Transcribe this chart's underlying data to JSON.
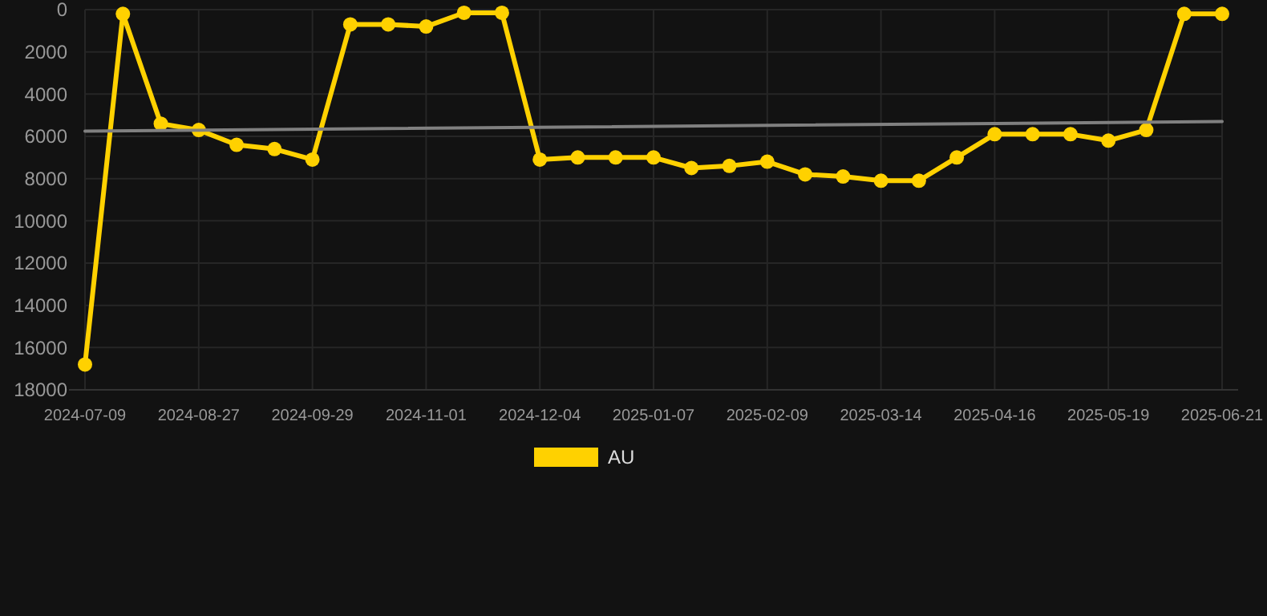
{
  "chart_data": {
    "type": "line",
    "categories": [
      "2024-07-09",
      null,
      null,
      "2024-08-27",
      null,
      null,
      "2024-09-29",
      null,
      null,
      "2024-11-01",
      null,
      null,
      "2024-12-04",
      null,
      null,
      "2025-01-07",
      null,
      null,
      "2025-02-09",
      null,
      null,
      "2025-03-14",
      null,
      null,
      "2025-04-16",
      null,
      null,
      "2025-05-19",
      null,
      null,
      "2025-06-21"
    ],
    "series": [
      {
        "name": "AU",
        "color": "#ffd100",
        "marker": "circle",
        "values": [
          16800,
          200,
          5400,
          5700,
          6400,
          6600,
          7100,
          700,
          700,
          800,
          150,
          150,
          7100,
          7000,
          7000,
          7000,
          7500,
          7400,
          7200,
          7800,
          7900,
          8100,
          8100,
          7000,
          5900,
          5900,
          5900,
          6200,
          5700,
          200,
          200
        ]
      },
      {
        "type": "line",
        "color": "#808080",
        "marker": "none",
        "values": [
          5750,
          null,
          null,
          null,
          null,
          null,
          null,
          null,
          null,
          null,
          null,
          null,
          null,
          null,
          null,
          null,
          null,
          null,
          null,
          null,
          null,
          null,
          null,
          null,
          null,
          null,
          null,
          null,
          null,
          null,
          5300
        ]
      }
    ],
    "ylim": [
      18000,
      0
    ],
    "yticks": [
      0,
      2000,
      4000,
      6000,
      8000,
      10000,
      12000,
      14000,
      16000,
      18000
    ],
    "grid": true,
    "legend": "bottom"
  }
}
